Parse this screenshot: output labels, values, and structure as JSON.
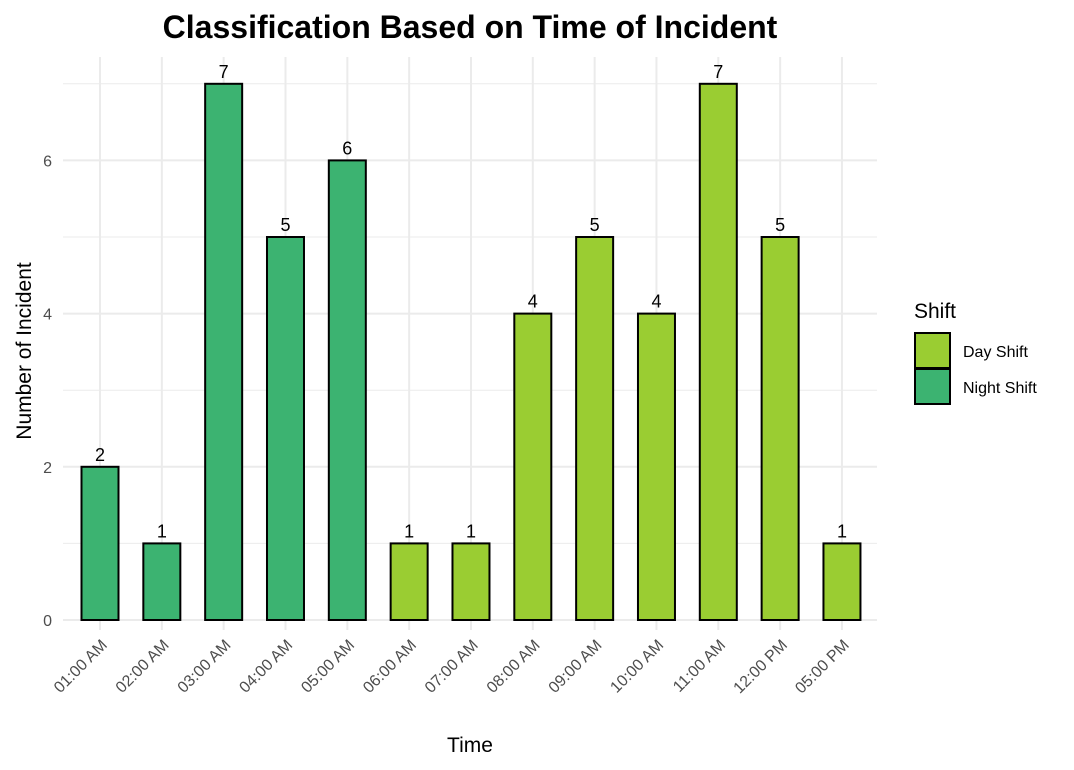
{
  "chart_data": {
    "type": "bar",
    "title": "Classification Based on Time of Incident",
    "xlabel": "Time",
    "ylabel": "Number of Incident",
    "categories": [
      "01:00 AM",
      "02:00 AM",
      "03:00 AM",
      "04:00 AM",
      "05:00 AM",
      "06:00 AM",
      "07:00 AM",
      "08:00 AM",
      "09:00 AM",
      "10:00 AM",
      "11:00 AM",
      "12:00 PM",
      "05:00 PM"
    ],
    "values": [
      2,
      1,
      7,
      5,
      6,
      1,
      1,
      4,
      5,
      4,
      7,
      5,
      1
    ],
    "shift": [
      "Night Shift",
      "Night Shift",
      "Night Shift",
      "Night Shift",
      "Night Shift",
      "Day Shift",
      "Day Shift",
      "Day Shift",
      "Day Shift",
      "Day Shift",
      "Day Shift",
      "Day Shift",
      "Day Shift"
    ],
    "ylim": [
      0,
      7
    ],
    "yticks": [
      0,
      2,
      4,
      6
    ],
    "grid": true,
    "legend": {
      "title": "Shift",
      "position": "right",
      "entries": [
        {
          "name": "Day Shift",
          "color": "#9ACD32"
        },
        {
          "name": "Night Shift",
          "color": "#3CB371"
        }
      ]
    },
    "colors": {
      "Day Shift": "#9ACD32",
      "Night Shift": "#3CB371",
      "bar_outline": "#000000",
      "grid": "#ebebeb"
    }
  }
}
